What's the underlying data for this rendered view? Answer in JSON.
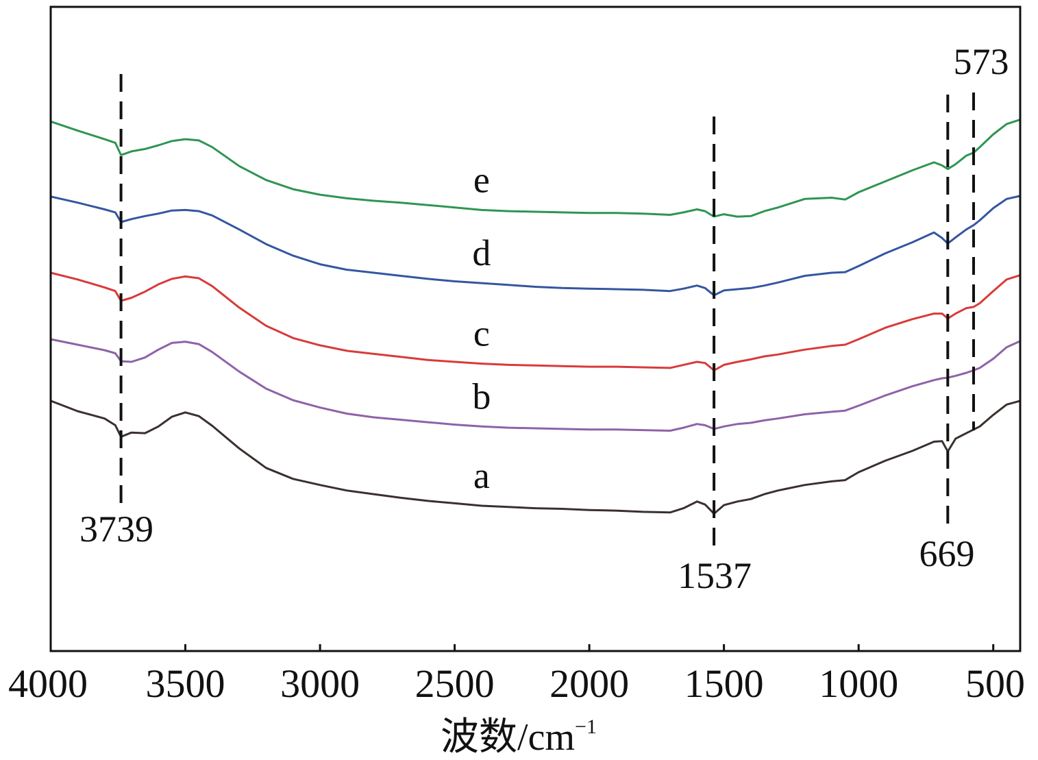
{
  "chart_data": {
    "type": "line",
    "title": "",
    "xlabel": "波数/cm",
    "xlabel_sup": "−1",
    "ylabel": "",
    "xlim": [
      4000,
      400
    ],
    "x_reversed": true,
    "ticks": [
      4000,
      3500,
      3000,
      2500,
      2000,
      1500,
      1000,
      500
    ],
    "grid": false,
    "legend": "none",
    "series": [
      {
        "name": "a",
        "color": "#3a302e",
        "x": [
          4000,
          3900,
          3800,
          3760,
          3739,
          3700,
          3650,
          3600,
          3550,
          3500,
          3450,
          3400,
          3300,
          3200,
          3100,
          3000,
          2900,
          2800,
          2700,
          2600,
          2500,
          2400,
          2300,
          2200,
          2100,
          2000,
          1900,
          1800,
          1700,
          1650,
          1600,
          1570,
          1537,
          1500,
          1450,
          1400,
          1350,
          1300,
          1200,
          1100,
          1050,
          1000,
          900,
          800,
          720,
          690,
          669,
          640,
          600,
          573,
          550,
          500,
          450,
          400
        ],
        "values": [
          47.2,
          45.5,
          44.3,
          43.2,
          41.3,
          42.0,
          41.9,
          43.0,
          44.6,
          45.3,
          44.7,
          43.1,
          39.4,
          36.2,
          34.4,
          33.4,
          32.5,
          31.9,
          31.3,
          30.8,
          30.4,
          30.0,
          29.8,
          29.6,
          29.5,
          29.3,
          29.2,
          29.0,
          28.9,
          29.6,
          30.7,
          30.2,
          28.7,
          30.1,
          30.7,
          31.1,
          31.9,
          32.5,
          33.4,
          34.0,
          34.2,
          35.5,
          37.4,
          39.0,
          40.5,
          40.6,
          38.9,
          41.0,
          41.9,
          42.5,
          43.0,
          44.9,
          46.6,
          47.2
        ]
      },
      {
        "name": "b",
        "color": "#8e62a8",
        "x": [
          4000,
          3900,
          3800,
          3760,
          3739,
          3700,
          3650,
          3600,
          3550,
          3500,
          3450,
          3400,
          3300,
          3200,
          3100,
          3000,
          2900,
          2800,
          2700,
          2600,
          2500,
          2400,
          2300,
          2200,
          2100,
          2000,
          1900,
          1800,
          1700,
          1650,
          1600,
          1570,
          1537,
          1500,
          1450,
          1400,
          1350,
          1300,
          1200,
          1100,
          1050,
          1000,
          900,
          800,
          720,
          690,
          669,
          640,
          600,
          573,
          550,
          500,
          450,
          400
        ],
        "values": [
          57.3,
          56.4,
          55.5,
          55.0,
          53.7,
          53.6,
          54.3,
          55.6,
          56.7,
          56.9,
          56.5,
          55.2,
          52.0,
          49.2,
          47.3,
          46.1,
          45.1,
          44.5,
          44.1,
          43.7,
          43.3,
          43.0,
          42.8,
          42.7,
          42.6,
          42.5,
          42.5,
          42.4,
          42.3,
          42.8,
          43.4,
          43.2,
          42.6,
          43.0,
          43.4,
          43.6,
          44.0,
          44.3,
          45.0,
          45.4,
          45.6,
          46.4,
          48.1,
          49.6,
          50.6,
          50.9,
          51.0,
          51.3,
          51.8,
          52.2,
          52.6,
          54.1,
          56.0,
          57.0
        ]
      },
      {
        "name": "c",
        "color": "#d93a3a",
        "x": [
          4000,
          3900,
          3800,
          3760,
          3739,
          3700,
          3650,
          3600,
          3550,
          3500,
          3450,
          3400,
          3300,
          3200,
          3100,
          3000,
          2900,
          2800,
          2700,
          2600,
          2500,
          2400,
          2300,
          2200,
          2100,
          2000,
          1900,
          1800,
          1700,
          1650,
          1600,
          1570,
          1537,
          1500,
          1450,
          1400,
          1350,
          1300,
          1200,
          1100,
          1050,
          1000,
          900,
          800,
          720,
          690,
          669,
          640,
          600,
          573,
          550,
          500,
          450,
          400
        ],
        "values": [
          68.2,
          67.1,
          65.8,
          65.2,
          63.6,
          64.1,
          65.1,
          66.3,
          67.2,
          67.6,
          67.3,
          66.0,
          62.5,
          59.5,
          57.5,
          56.3,
          55.4,
          54.9,
          54.4,
          53.9,
          53.6,
          53.3,
          53.1,
          53.0,
          52.9,
          52.8,
          52.8,
          52.7,
          52.6,
          53.1,
          53.6,
          53.4,
          52.2,
          53.1,
          53.6,
          54.0,
          54.5,
          54.8,
          55.6,
          56.2,
          56.4,
          57.3,
          59.2,
          60.6,
          61.5,
          61.5,
          60.7,
          61.5,
          62.4,
          62.6,
          63.2,
          65.2,
          67.1,
          67.8
        ]
      },
      {
        "name": "d",
        "color": "#3456a0",
        "x": [
          4000,
          3900,
          3800,
          3760,
          3739,
          3700,
          3650,
          3600,
          3550,
          3500,
          3450,
          3400,
          3300,
          3200,
          3100,
          3000,
          2900,
          2800,
          2700,
          2600,
          2500,
          2400,
          2300,
          2200,
          2100,
          2000,
          1900,
          1800,
          1700,
          1650,
          1600,
          1570,
          1537,
          1500,
          1450,
          1400,
          1350,
          1300,
          1200,
          1100,
          1050,
          1000,
          900,
          800,
          720,
          690,
          669,
          640,
          600,
          573,
          550,
          500,
          450,
          400
        ],
        "values": [
          80.7,
          79.7,
          78.6,
          78.1,
          76.5,
          77.0,
          77.5,
          77.9,
          78.4,
          78.5,
          78.3,
          77.6,
          75.3,
          72.9,
          71.0,
          69.6,
          68.7,
          68.2,
          67.7,
          67.2,
          66.8,
          66.5,
          66.2,
          65.9,
          65.7,
          65.6,
          65.5,
          65.4,
          65.2,
          65.6,
          66.1,
          65.7,
          64.5,
          65.3,
          65.5,
          65.7,
          66.1,
          66.6,
          67.7,
          68.2,
          68.3,
          69.3,
          71.4,
          73.2,
          74.8,
          73.9,
          73.0,
          74.0,
          75.3,
          76.0,
          76.8,
          78.8,
          80.3,
          80.8
        ]
      },
      {
        "name": "e",
        "color": "#2e9552",
        "x": [
          4000,
          3900,
          3800,
          3760,
          3739,
          3700,
          3650,
          3600,
          3550,
          3500,
          3450,
          3400,
          3300,
          3200,
          3100,
          3000,
          2900,
          2800,
          2700,
          2600,
          2500,
          2400,
          2300,
          2200,
          2100,
          2000,
          1900,
          1800,
          1700,
          1650,
          1600,
          1570,
          1537,
          1500,
          1450,
          1400,
          1350,
          1300,
          1200,
          1100,
          1050,
          1000,
          900,
          800,
          720,
          690,
          669,
          640,
          600,
          573,
          550,
          500,
          450,
          400
        ],
        "values": [
          93.0,
          91.5,
          90.1,
          89.5,
          87.5,
          88.1,
          88.5,
          89.1,
          89.8,
          90.1,
          89.9,
          88.8,
          85.7,
          83.4,
          81.9,
          81.0,
          80.4,
          80.0,
          79.7,
          79.3,
          78.9,
          78.5,
          78.3,
          78.2,
          78.1,
          78.0,
          78.0,
          77.9,
          77.7,
          78.1,
          78.6,
          78.3,
          77.4,
          77.8,
          77.4,
          77.5,
          78.3,
          78.9,
          80.3,
          80.5,
          80.2,
          81.4,
          83.2,
          85.0,
          86.3,
          85.8,
          85.2,
          86.0,
          87.4,
          87.9,
          88.8,
          90.9,
          92.6,
          93.3
        ]
      }
    ],
    "annotations": [
      {
        "x": 3739,
        "label": "3739",
        "position": "below"
      },
      {
        "x": 1537,
        "label": "1537",
        "position": "below"
      },
      {
        "x": 669,
        "label": "669",
        "position": "below"
      },
      {
        "x": 573,
        "label": "573",
        "position": "above"
      }
    ]
  }
}
